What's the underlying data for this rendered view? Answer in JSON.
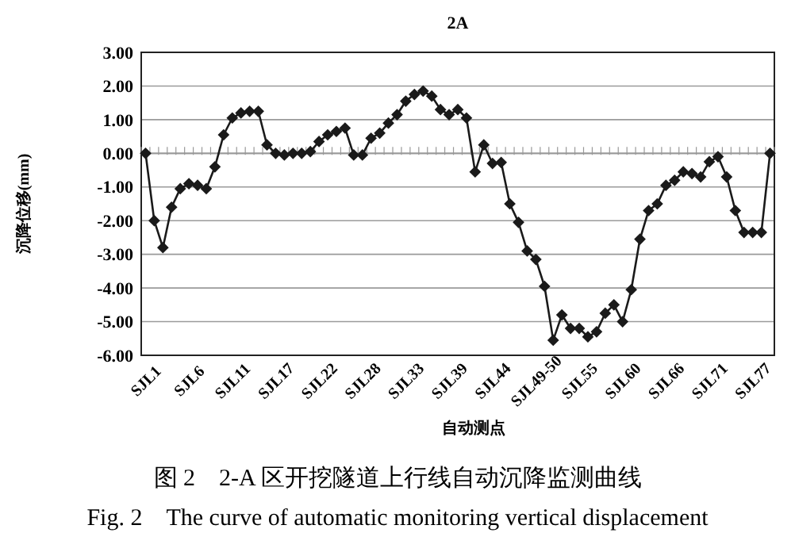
{
  "chart_data": {
    "type": "line",
    "title": "2A",
    "xlabel": "自动测点",
    "ylabel": "沉降位移(mm)",
    "annotations": [
      "图 2　2-A 区开挖隧道上行线自动沉降监测曲线",
      "Fig. 2　The curve of automatic monitoring vertical displacement"
    ],
    "categories": [
      "SJL1",
      null,
      null,
      null,
      null,
      "SJL6",
      null,
      null,
      null,
      null,
      "SJL11",
      null,
      null,
      null,
      null,
      "SJL17",
      null,
      null,
      null,
      null,
      "SJL22",
      null,
      null,
      null,
      null,
      "SJL28",
      null,
      null,
      null,
      null,
      "SJL33",
      null,
      null,
      null,
      null,
      "SJL39",
      null,
      null,
      null,
      null,
      "SJL44",
      null,
      null,
      null,
      null,
      "SJL49-50",
      null,
      null,
      null,
      null,
      "SJL55",
      null,
      null,
      null,
      null,
      "SJL60",
      null,
      null,
      null,
      null,
      "SJL66",
      null,
      null,
      null,
      null,
      "SJL71",
      null,
      null,
      null,
      null,
      "SJL77",
      null,
      null
    ],
    "series": [
      {
        "color": "#1a1a1a",
        "values": [
          0,
          -2.0,
          -2.8,
          -1.6,
          -1.05,
          -0.9,
          -0.95,
          -1.05,
          -0.4,
          0.55,
          1.05,
          1.2,
          1.25,
          1.25,
          0.25,
          0.0,
          -0.05,
          0.0,
          0.0,
          0.05,
          0.35,
          0.55,
          0.65,
          0.75,
          -0.05,
          -0.05,
          0.45,
          0.6,
          0.9,
          1.15,
          1.55,
          1.75,
          1.85,
          1.7,
          1.3,
          1.15,
          1.3,
          1.05,
          -0.55,
          0.25,
          -0.3,
          -0.27,
          -1.5,
          -2.05,
          -2.9,
          -3.15,
          -3.95,
          -5.55,
          -4.8,
          -5.2,
          -5.2,
          -5.45,
          -5.3,
          -4.75,
          -4.5,
          -5.0,
          -4.05,
          -2.55,
          -1.7,
          -1.5,
          -0.95,
          -0.8,
          -0.55,
          -0.6,
          -0.7,
          -0.25,
          -0.1,
          -0.7,
          -1.7,
          -2.35,
          -2.35,
          -2.35,
          0.0
        ]
      }
    ],
    "ylim": [
      -6,
      3
    ],
    "yticks": [
      {
        "value": 3,
        "label": "3.00"
      },
      {
        "value": 2,
        "label": "2.00"
      },
      {
        "value": 1,
        "label": "1.00"
      },
      {
        "value": 0,
        "label": "0.00"
      },
      {
        "value": -1,
        "label": "-1.00"
      },
      {
        "value": -2,
        "label": "-2.00"
      },
      {
        "value": -3,
        "label": "-3.00"
      },
      {
        "value": -4,
        "label": "-4.00"
      },
      {
        "value": -5,
        "label": "-5.00"
      },
      {
        "value": -6,
        "label": "-6.00"
      }
    ],
    "grid": "y",
    "marker": "diamond",
    "line_style": "solid"
  }
}
